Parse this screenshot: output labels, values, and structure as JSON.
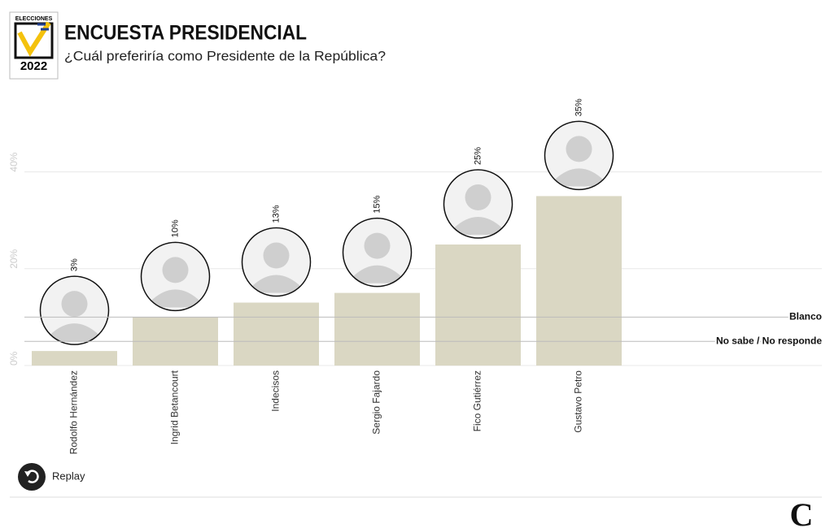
{
  "header": {
    "logo_top": "ELECCIONES",
    "logo_year": "2022",
    "title": "ENCUESTA PRESIDENCIAL",
    "subtitle": "¿Cuál preferiría como Presidente de la República?"
  },
  "chart_data": {
    "type": "bar",
    "categories": [
      "Rodolfo Hernández",
      "Ingrid Betancourt",
      "Indecisos",
      "Sergio Fajardo",
      "Fico Gutiérrez",
      "Gustavo Petro"
    ],
    "values": [
      3,
      10,
      13,
      15,
      25,
      35
    ],
    "value_labels": [
      "3%",
      "10%",
      "13%",
      "15%",
      "25%",
      "35%"
    ],
    "color": "#dad7c3",
    "ylim": [
      0,
      50
    ],
    "yticks": [
      {
        "value": 0,
        "label": "0%"
      },
      {
        "value": 20,
        "label": "20%"
      },
      {
        "value": 40,
        "label": "40%"
      }
    ],
    "grid": true,
    "reference_lines": [
      {
        "label": "Blanco",
        "value": 10
      },
      {
        "label": "No sabe / No responde",
        "value": 5
      }
    ]
  },
  "footer": {
    "replay": "Replay",
    "brand": "C"
  }
}
